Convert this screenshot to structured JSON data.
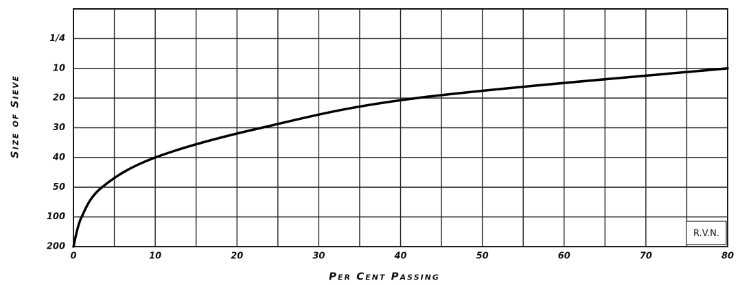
{
  "chart_data": {
    "type": "line",
    "orientation": "horizontal",
    "xlabel": "Per Cent Passing",
    "ylabel": "Size of Sieve",
    "annotation": "R.V.N.",
    "categories": [
      "200",
      "100",
      "50",
      "40",
      "30",
      "20",
      "10",
      "1/4"
    ],
    "series": [
      {
        "color": "#000000",
        "values": [
          0,
          1,
          3.5,
          10,
          23,
          42,
          80,
          null
        ]
      }
    ],
    "xlim": [
      0,
      80
    ],
    "xticks": [
      0,
      10,
      20,
      30,
      40,
      50,
      60,
      70,
      80
    ],
    "minor_xticks": [
      5,
      15,
      25,
      35,
      45,
      55,
      65,
      75
    ],
    "grid": true
  }
}
